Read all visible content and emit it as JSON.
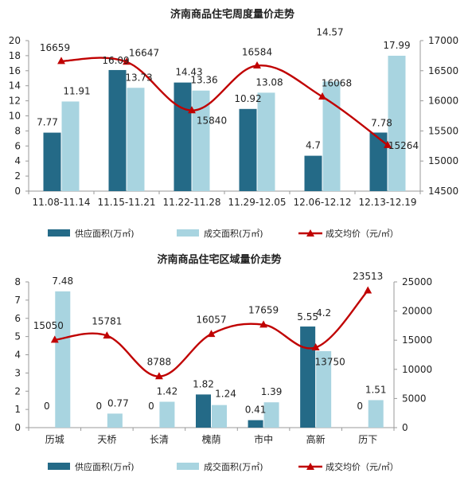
{
  "colors": {
    "supply": "#246a87",
    "traded": "#a8d4e0",
    "price": "#c00000",
    "axis": "#9a9a9a",
    "text": "#222222"
  },
  "chart_data": [
    {
      "type": "bar",
      "title": "济南商品住宅周度量价走势",
      "categories": [
        "11.08-11.14",
        "11.15-11.21",
        "11.22-11.28",
        "11.29-12.05",
        "12.06-12.12",
        "12.13-12.19"
      ],
      "series": [
        {
          "name": "供应面积(万㎡)",
          "type": "bar",
          "axis": "left",
          "values": [
            7.77,
            16.09,
            14.43,
            10.92,
            4.7,
            7.78
          ],
          "labels": [
            "7.77",
            "16.09",
            "14.43",
            "10.92",
            "4.7",
            "7.78"
          ]
        },
        {
          "name": "成交面积(万㎡)",
          "type": "bar",
          "axis": "left",
          "values": [
            11.91,
            13.73,
            13.36,
            13.08,
            14.57,
            17.99
          ],
          "labels": [
            "11.91",
            "13.73",
            "13.36",
            "13.08",
            "14.57",
            "17.99"
          ]
        },
        {
          "name": "成交均价（元/㎡）",
          "type": "line",
          "axis": "right",
          "values": [
            16659,
            16647,
            15840,
            16584,
            16068,
            15264
          ],
          "labels": [
            "16659",
            "16647",
            "15840",
            "16584",
            "16068",
            "15264"
          ]
        }
      ],
      "y_left": {
        "range": [
          0,
          20
        ],
        "ticks": [
          "0",
          "2",
          "4",
          "6",
          "8",
          "10",
          "12",
          "14",
          "16",
          "18",
          "20"
        ]
      },
      "y_right": {
        "range": [
          14500,
          17000
        ],
        "ticks": [
          "14500",
          "15000",
          "15500",
          "16000",
          "16500",
          "17000"
        ]
      },
      "legend": "bottom",
      "grid": false
    },
    {
      "type": "bar",
      "title": "济南商品住宅区域量价走势",
      "categories": [
        "历城",
        "天桥",
        "长清",
        "槐荫",
        "市中",
        "高新",
        "历下"
      ],
      "series": [
        {
          "name": "供应面积(万㎡)",
          "type": "bar",
          "axis": "left",
          "values": [
            0,
            0,
            0,
            1.82,
            0.41,
            5.55,
            0
          ],
          "labels": [
            "0",
            "0",
            "0",
            "1.82",
            "0.41",
            "5.55",
            "0"
          ]
        },
        {
          "name": "成交面积(万㎡)",
          "type": "bar",
          "axis": "left",
          "values": [
            7.48,
            0.77,
            1.42,
            1.24,
            1.39,
            4.2,
            1.51
          ],
          "labels": [
            "7.48",
            "0.77",
            "1.42",
            "1.24",
            "1.39",
            "4.2",
            "1.51"
          ]
        },
        {
          "name": "成交均价（元/㎡）",
          "type": "line",
          "axis": "right",
          "values": [
            15050,
            15781,
            8788,
            16057,
            17659,
            13750,
            23513
          ],
          "labels": [
            "15050",
            "15781",
            "8788",
            "16057",
            "17659",
            "13750",
            "23513"
          ]
        }
      ],
      "y_left": {
        "range": [
          0,
          8
        ],
        "ticks": [
          "0",
          "1",
          "2",
          "3",
          "4",
          "5",
          "6",
          "7",
          "8"
        ]
      },
      "y_right": {
        "range": [
          0,
          25000
        ],
        "ticks": [
          "0",
          "5000",
          "10000",
          "15000",
          "20000",
          "25000"
        ]
      },
      "legend": "bottom",
      "grid": false
    }
  ]
}
